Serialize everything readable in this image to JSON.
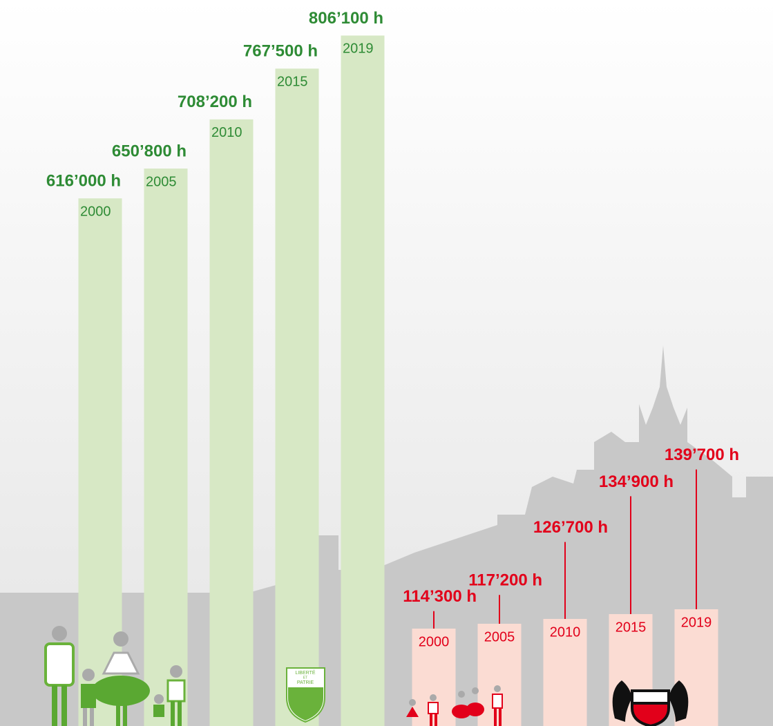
{
  "chart_data": [
    {
      "type": "bar",
      "categories": [
        "2000",
        "2005",
        "2010",
        "2015",
        "2019"
      ],
      "values": [
        616000,
        650800,
        708200,
        767500,
        806100
      ],
      "value_labels": [
        "616’000 h",
        "650’800 h",
        "708’200 h",
        "767’500 h",
        "806’100 h"
      ],
      "color": "#d7e8c5",
      "label_color": "#2e8b35",
      "ylim": [
        0,
        847600
      ],
      "annotations": [
        "LIBERTÉ",
        "ET",
        "PATRIE"
      ]
    },
    {
      "type": "stem",
      "categories": [
        "2000",
        "2005",
        "2010",
        "2015",
        "2019"
      ],
      "values": [
        114300,
        117200,
        126700,
        134900,
        139700
      ],
      "value_labels": [
        "114’300 h",
        "117’200 h",
        "126’700 h",
        "134’900 h",
        "139’700 h"
      ],
      "color": "#fbdcd3",
      "label_color": "#e2001a",
      "ylim": [
        93700,
        223900
      ]
    }
  ]
}
